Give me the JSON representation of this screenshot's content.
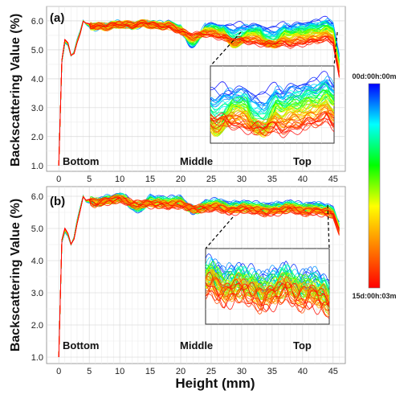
{
  "x_axis_label": "Height (mm)",
  "colorbar": {
    "top_label": "00d:00h:00m",
    "bottom_label": "15d:00h:03m",
    "stops": [
      "#0000ff",
      "#00ffff",
      "#00ff00",
      "#ffff00",
      "#ff8000",
      "#ff0000"
    ]
  },
  "chart_data": [
    {
      "type": "line",
      "panel_label": "(a)",
      "ylabel": "Backscattering Value (%)",
      "xlabel": "",
      "xlim": [
        -2,
        47
      ],
      "ylim": [
        0.8,
        6.5
      ],
      "x_ticks": [
        "0",
        "5",
        "10",
        "15",
        "20",
        "25",
        "30",
        "35",
        "40",
        "45"
      ],
      "y_ticks": [
        "1.0",
        "2.0",
        "3.0",
        "4.0",
        "5.0",
        "6.0"
      ],
      "grid": true,
      "region_labels": [
        "Bottom",
        "Middle",
        "Top"
      ],
      "inset": true,
      "series_count": 60,
      "series_color_scale": "time from 00d:00h:00m (blue) to 15d:00h:03m (red)",
      "representative_profile": {
        "x": [
          0,
          0.5,
          1,
          1.5,
          2,
          2.5,
          3,
          3.5,
          4,
          4.5,
          5,
          6,
          8,
          10,
          12,
          14,
          16,
          18,
          20,
          22,
          24,
          26,
          28,
          30,
          32,
          34,
          36,
          38,
          40,
          42,
          44,
          45,
          46
        ],
        "y": [
          1.0,
          4.6,
          5.3,
          5.2,
          4.8,
          4.9,
          5.3,
          5.6,
          6.0,
          5.9,
          5.85,
          5.8,
          5.8,
          5.9,
          5.85,
          5.9,
          5.85,
          5.9,
          5.75,
          5.7,
          5.8,
          5.75,
          5.7,
          5.75,
          5.7,
          5.7,
          5.75,
          5.7,
          5.75,
          5.8,
          5.9,
          5.8,
          4.6
        ]
      },
      "initial_profile_range": {
        "x": [
          8,
          20,
          30,
          40,
          45
        ],
        "y": [
          5.8,
          5.8,
          5.9,
          6.0,
          6.05
        ]
      },
      "final_profile_range": {
        "x": [
          8,
          20,
          30,
          40,
          45
        ],
        "y": [
          5.7,
          5.7,
          5.3,
          5.2,
          5.5
        ]
      }
    },
    {
      "type": "line",
      "panel_label": "(b)",
      "ylabel": "Backscattering Value (%)",
      "xlabel": "Height (mm)",
      "xlim": [
        -2,
        47
      ],
      "ylim": [
        0.8,
        6.3
      ],
      "x_ticks": [
        "0",
        "5",
        "10",
        "15",
        "20",
        "25",
        "30",
        "35",
        "40",
        "45"
      ],
      "y_ticks": [
        "1.0",
        "2.0",
        "3.0",
        "4.0",
        "5.0",
        "6.0"
      ],
      "grid": true,
      "region_labels": [
        "Bottom",
        "Middle",
        "Top"
      ],
      "inset": true,
      "series_count": 60,
      "series_color_scale": "time from 00d:00h:00m (blue) to 15d:00h:03m (red)",
      "representative_profile": {
        "x": [
          0,
          0.5,
          1,
          1.5,
          2,
          2.5,
          3,
          3.5,
          4,
          4.5,
          5,
          6,
          8,
          10,
          12,
          14,
          16,
          18,
          20,
          22,
          24,
          26,
          28,
          30,
          32,
          34,
          36,
          38,
          40,
          42,
          44,
          45,
          46
        ],
        "y": [
          1.0,
          4.6,
          4.95,
          4.8,
          4.5,
          4.7,
          5.2,
          5.6,
          6.0,
          5.85,
          5.85,
          5.8,
          5.9,
          5.95,
          5.85,
          5.9,
          5.85,
          5.8,
          5.85,
          5.75,
          5.7,
          5.75,
          5.65,
          5.7,
          5.65,
          5.6,
          5.65,
          5.7,
          5.6,
          5.65,
          5.6,
          5.5,
          5.0
        ]
      }
    }
  ]
}
